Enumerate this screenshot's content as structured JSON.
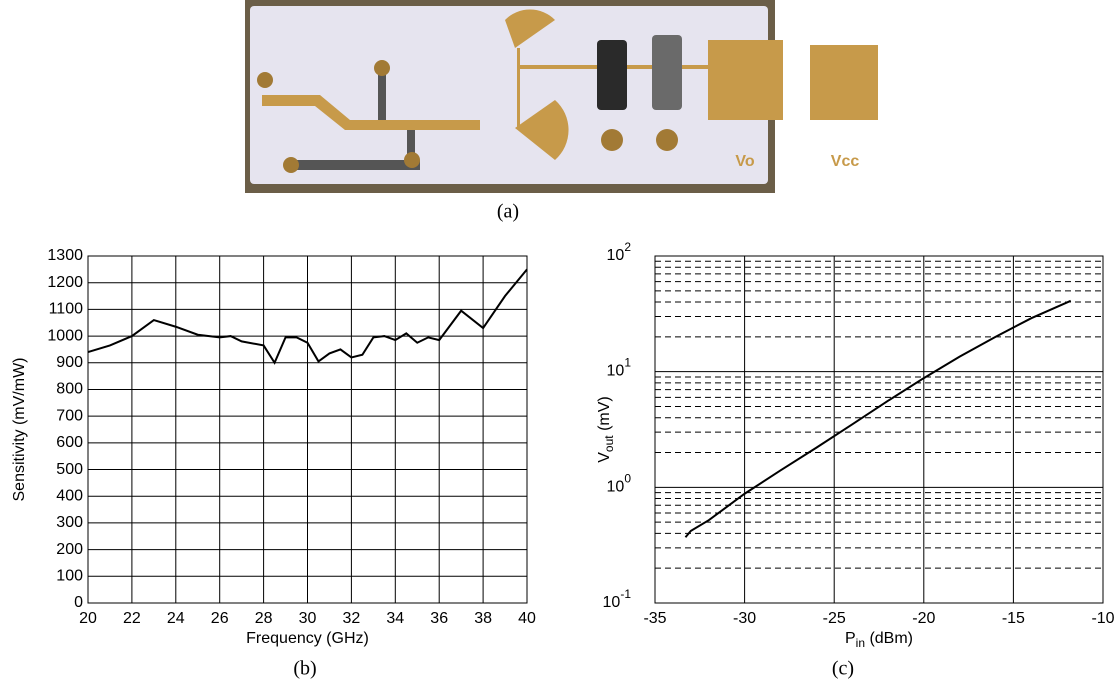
{
  "photo": {
    "labels": [
      "Vo",
      "Vcc"
    ]
  },
  "captions": [
    "(a)",
    "(b)",
    "(c)"
  ],
  "chart_data": [
    {
      "type": "line",
      "xlabel": "Frequency (GHz)",
      "ylabel": "Sensitivity (mV/mW)",
      "xlim": [
        20,
        40
      ],
      "xticks": [
        20,
        22,
        24,
        26,
        28,
        30,
        32,
        34,
        36,
        38,
        40
      ],
      "ylim": [
        0,
        1300
      ],
      "yticks": [
        0,
        100,
        200,
        300,
        400,
        500,
        600,
        700,
        800,
        900,
        1000,
        1100,
        1200,
        1300
      ],
      "grid": true,
      "log_y": false,
      "series": [
        {
          "color": "#000000",
          "x": [
            20,
            21,
            22,
            23,
            24,
            25,
            26,
            26.5,
            27,
            28,
            28.5,
            29,
            29.5,
            30,
            30.5,
            31,
            31.5,
            32,
            32.5,
            33,
            33.5,
            34,
            34.5,
            35,
            35.5,
            36,
            37,
            38,
            39,
            40
          ],
          "values": [
            940,
            965,
            1000,
            1060,
            1035,
            1005,
            995,
            1000,
            980,
            965,
            900,
            995,
            995,
            975,
            905,
            935,
            950,
            920,
            930,
            995,
            1000,
            985,
            1010,
            975,
            995,
            985,
            1095,
            1030,
            1150,
            1250
          ]
        }
      ]
    },
    {
      "type": "line",
      "xlabel": {
        "text": "P",
        "sub": "in",
        "rest": " (dBm)"
      },
      "ylabel": {
        "text": "V",
        "sub": "out",
        "rest": " (mV)"
      },
      "xlim": [
        -35,
        -10
      ],
      "xticks": [
        -35,
        -30,
        -25,
        -20,
        -15,
        -10
      ],
      "ylim": [
        0.1,
        100
      ],
      "yticks": [
        {
          "value": 0.1,
          "label": "10",
          "exponent": "-1"
        },
        {
          "value": 1,
          "label": "10",
          "exponent": "0"
        },
        {
          "value": 10,
          "label": "10",
          "exponent": "1"
        },
        {
          "value": 100,
          "label": "10",
          "exponent": "2"
        }
      ],
      "minor_yticks": [
        0.2,
        0.3,
        0.4,
        0.5,
        0.6,
        0.7,
        0.8,
        0.9,
        2,
        3,
        4,
        5,
        6,
        7,
        8,
        9,
        20,
        30,
        40,
        50,
        60,
        70,
        80,
        90
      ],
      "grid": true,
      "log_y": true,
      "series": [
        {
          "color": "#000000",
          "x": [
            -33.3,
            -33,
            -32,
            -30,
            -28,
            -26,
            -24,
            -22,
            -20,
            -18,
            -16,
            -14,
            -11.8
          ],
          "values": [
            0.37,
            0.42,
            0.52,
            0.88,
            1.4,
            2.2,
            3.5,
            5.6,
            8.8,
            13.5,
            20,
            29,
            41
          ]
        }
      ]
    }
  ]
}
